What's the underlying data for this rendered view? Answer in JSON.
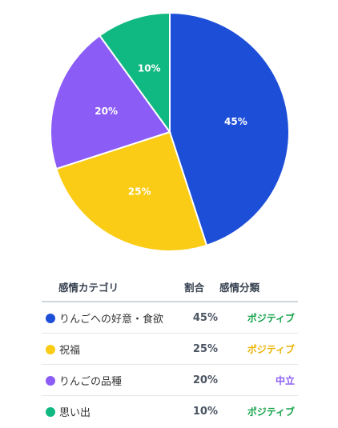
{
  "chart_data": {
    "type": "pie",
    "slices": [
      {
        "label": "りんごへの好意・食欲",
        "value": 45,
        "value_label": "45%",
        "color": "#1d4ed8",
        "sentiment": "ポジティブ",
        "sentiment_color": "#16a34a"
      },
      {
        "label": "祝福",
        "value": 25,
        "value_label": "25%",
        "color": "#facc15",
        "sentiment": "ポジティブ",
        "sentiment_color": "#eab308"
      },
      {
        "label": "りんごの品種",
        "value": 20,
        "value_label": "20%",
        "color": "#8b5cf6",
        "sentiment": "中立",
        "sentiment_color": "#8b5cf6"
      },
      {
        "label": "思い出",
        "value": 10,
        "value_label": "10%",
        "color": "#10b981",
        "sentiment": "ポジティブ",
        "sentiment_color": "#16a34a"
      }
    ]
  },
  "table": {
    "headers": {
      "category": "感情カテゴリ",
      "ratio": "割合",
      "sentiment": "感情分類"
    }
  }
}
